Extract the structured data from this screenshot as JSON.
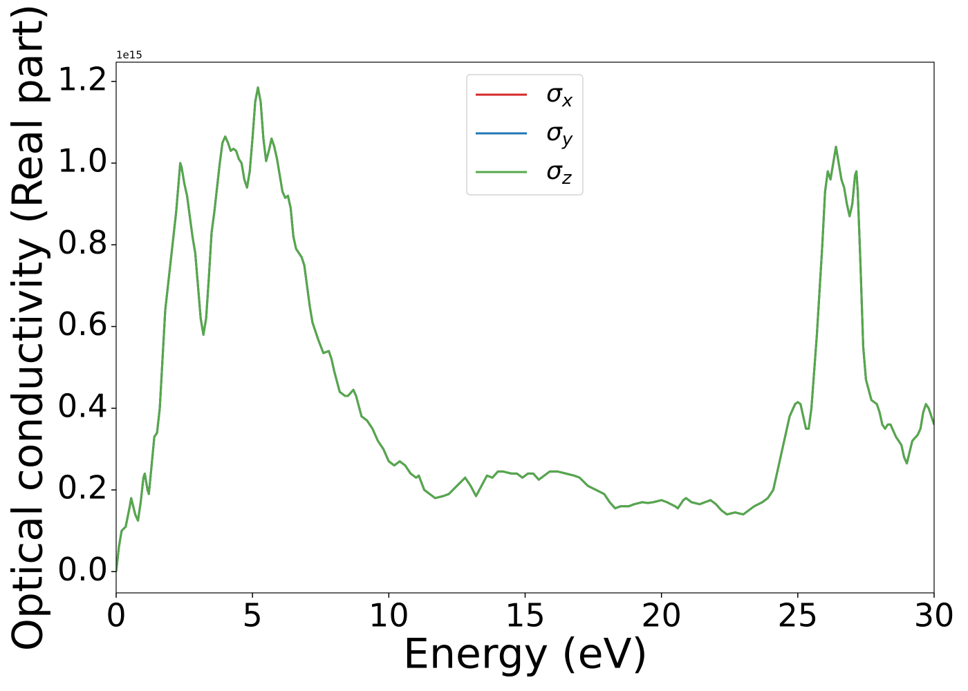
{
  "chart_data": {
    "type": "line",
    "x_label": "Energy (eV)",
    "y_label": "Optical conductivity (Real part)",
    "y_offset_label": "1e15",
    "x": [
      0,
      0.1,
      0.2,
      0.35,
      0.5,
      0.55,
      0.7,
      0.8,
      0.9,
      1.0,
      1.05,
      1.15,
      1.2,
      1.3,
      1.4,
      1.5,
      1.6,
      1.7,
      1.8,
      1.9,
      2.0,
      2.1,
      2.2,
      2.3,
      2.35,
      2.4,
      2.5,
      2.6,
      2.7,
      2.8,
      2.9,
      3.0,
      3.1,
      3.2,
      3.3,
      3.4,
      3.5,
      3.6,
      3.7,
      3.8,
      3.9,
      4.0,
      4.1,
      4.2,
      4.3,
      4.4,
      4.5,
      4.6,
      4.7,
      4.8,
      4.9,
      5.0,
      5.1,
      5.2,
      5.3,
      5.4,
      5.5,
      5.6,
      5.7,
      5.8,
      5.9,
      6.0,
      6.1,
      6.2,
      6.3,
      6.4,
      6.5,
      6.6,
      6.8,
      6.9,
      7.0,
      7.1,
      7.2,
      7.4,
      7.6,
      7.8,
      7.9,
      8.0,
      8.2,
      8.4,
      8.5,
      8.7,
      8.8,
      9.0,
      9.2,
      9.4,
      9.6,
      9.8,
      10.0,
      10.2,
      10.4,
      10.6,
      10.8,
      11.0,
      11.1,
      11.3,
      11.5,
      11.7,
      12.0,
      12.2,
      12.5,
      12.8,
      13.0,
      13.2,
      13.4,
      13.6,
      13.8,
      14.0,
      14.2,
      14.5,
      14.7,
      14.9,
      15.1,
      15.3,
      15.5,
      15.7,
      15.9,
      16.2,
      16.5,
      16.8,
      17.0,
      17.3,
      17.6,
      17.9,
      18.1,
      18.3,
      18.5,
      18.8,
      19.0,
      19.3,
      19.5,
      19.7,
      20.0,
      20.2,
      20.5,
      20.6,
      20.8,
      20.9,
      21.1,
      21.4,
      21.6,
      21.8,
      22.0,
      22.2,
      22.4,
      22.7,
      23.0,
      23.2,
      23.4,
      23.7,
      23.9,
      24.1,
      24.3,
      24.5,
      24.7,
      24.9,
      25.0,
      25.1,
      25.2,
      25.3,
      25.4,
      25.5,
      25.7,
      25.9,
      26.0,
      26.1,
      26.2,
      26.3,
      26.4,
      26.5,
      26.6,
      26.7,
      26.8,
      26.9,
      27.0,
      27.1,
      27.15,
      27.2,
      27.3,
      27.4,
      27.5,
      27.7,
      27.9,
      28.0,
      28.1,
      28.2,
      28.3,
      28.4,
      28.6,
      28.8,
      28.9,
      29.0,
      29.2,
      29.4,
      29.5,
      29.6,
      29.7,
      29.8,
      30.0
    ],
    "series": [
      {
        "name": "σx",
        "color": "#d62728",
        "values": [
          0.0,
          0.06,
          0.1,
          0.11,
          0.16,
          0.18,
          0.14,
          0.125,
          0.17,
          0.23,
          0.24,
          0.2,
          0.19,
          0.26,
          0.33,
          0.34,
          0.4,
          0.52,
          0.64,
          0.7,
          0.76,
          0.82,
          0.88,
          0.96,
          1.0,
          0.99,
          0.95,
          0.92,
          0.87,
          0.82,
          0.78,
          0.7,
          0.62,
          0.58,
          0.62,
          0.72,
          0.83,
          0.88,
          0.94,
          1.0,
          1.05,
          1.065,
          1.05,
          1.03,
          1.035,
          1.03,
          1.01,
          1.0,
          0.96,
          0.94,
          0.98,
          1.06,
          1.15,
          1.185,
          1.15,
          1.06,
          1.005,
          1.03,
          1.06,
          1.04,
          1.01,
          0.97,
          0.93,
          0.915,
          0.92,
          0.89,
          0.82,
          0.79,
          0.77,
          0.75,
          0.7,
          0.65,
          0.61,
          0.57,
          0.535,
          0.54,
          0.52,
          0.49,
          0.44,
          0.43,
          0.43,
          0.445,
          0.43,
          0.38,
          0.37,
          0.35,
          0.32,
          0.3,
          0.27,
          0.26,
          0.27,
          0.26,
          0.24,
          0.23,
          0.235,
          0.2,
          0.19,
          0.18,
          0.185,
          0.19,
          0.21,
          0.23,
          0.21,
          0.185,
          0.21,
          0.235,
          0.23,
          0.245,
          0.245,
          0.24,
          0.24,
          0.23,
          0.24,
          0.24,
          0.225,
          0.235,
          0.245,
          0.245,
          0.24,
          0.235,
          0.23,
          0.21,
          0.2,
          0.19,
          0.17,
          0.155,
          0.16,
          0.16,
          0.165,
          0.17,
          0.168,
          0.17,
          0.175,
          0.17,
          0.16,
          0.155,
          0.175,
          0.18,
          0.17,
          0.165,
          0.17,
          0.175,
          0.165,
          0.15,
          0.14,
          0.145,
          0.14,
          0.15,
          0.16,
          0.17,
          0.18,
          0.2,
          0.26,
          0.32,
          0.38,
          0.41,
          0.415,
          0.41,
          0.38,
          0.35,
          0.35,
          0.4,
          0.58,
          0.8,
          0.93,
          0.98,
          0.96,
          1.0,
          1.04,
          1.0,
          0.96,
          0.94,
          0.9,
          0.87,
          0.9,
          0.97,
          0.98,
          0.93,
          0.75,
          0.55,
          0.47,
          0.42,
          0.41,
          0.39,
          0.36,
          0.35,
          0.36,
          0.36,
          0.33,
          0.31,
          0.28,
          0.265,
          0.32,
          0.335,
          0.35,
          0.39,
          0.41,
          0.4,
          0.36
        ]
      },
      {
        "name": "σy",
        "color": "#1f77b4",
        "values": [
          0.0,
          0.06,
          0.1,
          0.11,
          0.16,
          0.18,
          0.14,
          0.125,
          0.17,
          0.23,
          0.24,
          0.2,
          0.19,
          0.26,
          0.33,
          0.34,
          0.4,
          0.52,
          0.64,
          0.7,
          0.76,
          0.82,
          0.88,
          0.96,
          1.0,
          0.99,
          0.95,
          0.92,
          0.87,
          0.82,
          0.78,
          0.7,
          0.62,
          0.58,
          0.62,
          0.72,
          0.83,
          0.88,
          0.94,
          1.0,
          1.05,
          1.065,
          1.05,
          1.03,
          1.035,
          1.03,
          1.01,
          1.0,
          0.96,
          0.94,
          0.98,
          1.06,
          1.15,
          1.185,
          1.15,
          1.06,
          1.005,
          1.03,
          1.06,
          1.04,
          1.01,
          0.97,
          0.93,
          0.915,
          0.92,
          0.89,
          0.82,
          0.79,
          0.77,
          0.75,
          0.7,
          0.65,
          0.61,
          0.57,
          0.535,
          0.54,
          0.52,
          0.49,
          0.44,
          0.43,
          0.43,
          0.445,
          0.43,
          0.38,
          0.37,
          0.35,
          0.32,
          0.3,
          0.27,
          0.26,
          0.27,
          0.26,
          0.24,
          0.23,
          0.235,
          0.2,
          0.19,
          0.18,
          0.185,
          0.19,
          0.21,
          0.23,
          0.21,
          0.185,
          0.21,
          0.235,
          0.23,
          0.245,
          0.245,
          0.24,
          0.24,
          0.23,
          0.24,
          0.24,
          0.225,
          0.235,
          0.245,
          0.245,
          0.24,
          0.235,
          0.23,
          0.21,
          0.2,
          0.19,
          0.17,
          0.155,
          0.16,
          0.16,
          0.165,
          0.17,
          0.168,
          0.17,
          0.175,
          0.17,
          0.16,
          0.155,
          0.175,
          0.18,
          0.17,
          0.165,
          0.17,
          0.175,
          0.165,
          0.15,
          0.14,
          0.145,
          0.14,
          0.15,
          0.16,
          0.17,
          0.18,
          0.2,
          0.26,
          0.32,
          0.38,
          0.41,
          0.415,
          0.41,
          0.38,
          0.35,
          0.35,
          0.4,
          0.58,
          0.8,
          0.93,
          0.98,
          0.96,
          1.0,
          1.04,
          1.0,
          0.96,
          0.94,
          0.9,
          0.87,
          0.9,
          0.97,
          0.98,
          0.93,
          0.75,
          0.55,
          0.47,
          0.42,
          0.41,
          0.39,
          0.36,
          0.35,
          0.36,
          0.36,
          0.33,
          0.31,
          0.28,
          0.265,
          0.32,
          0.335,
          0.35,
          0.39,
          0.41,
          0.4,
          0.36
        ]
      },
      {
        "name": "σz",
        "color": "#55a84a",
        "values": [
          0.0,
          0.06,
          0.1,
          0.11,
          0.16,
          0.18,
          0.14,
          0.125,
          0.17,
          0.23,
          0.24,
          0.2,
          0.19,
          0.26,
          0.33,
          0.34,
          0.4,
          0.52,
          0.64,
          0.7,
          0.76,
          0.82,
          0.88,
          0.96,
          1.0,
          0.99,
          0.95,
          0.92,
          0.87,
          0.82,
          0.78,
          0.7,
          0.62,
          0.58,
          0.62,
          0.72,
          0.83,
          0.88,
          0.94,
          1.0,
          1.05,
          1.065,
          1.05,
          1.03,
          1.035,
          1.03,
          1.01,
          1.0,
          0.96,
          0.94,
          0.98,
          1.06,
          1.15,
          1.185,
          1.15,
          1.06,
          1.005,
          1.03,
          1.06,
          1.04,
          1.01,
          0.97,
          0.93,
          0.915,
          0.92,
          0.89,
          0.82,
          0.79,
          0.77,
          0.75,
          0.7,
          0.65,
          0.61,
          0.57,
          0.535,
          0.54,
          0.52,
          0.49,
          0.44,
          0.43,
          0.43,
          0.445,
          0.43,
          0.38,
          0.37,
          0.35,
          0.32,
          0.3,
          0.27,
          0.26,
          0.27,
          0.26,
          0.24,
          0.23,
          0.235,
          0.2,
          0.19,
          0.18,
          0.185,
          0.19,
          0.21,
          0.23,
          0.21,
          0.185,
          0.21,
          0.235,
          0.23,
          0.245,
          0.245,
          0.24,
          0.24,
          0.23,
          0.24,
          0.24,
          0.225,
          0.235,
          0.245,
          0.245,
          0.24,
          0.235,
          0.23,
          0.21,
          0.2,
          0.19,
          0.17,
          0.155,
          0.16,
          0.16,
          0.165,
          0.17,
          0.168,
          0.17,
          0.175,
          0.17,
          0.16,
          0.155,
          0.175,
          0.18,
          0.17,
          0.165,
          0.17,
          0.175,
          0.165,
          0.15,
          0.14,
          0.145,
          0.14,
          0.15,
          0.16,
          0.17,
          0.18,
          0.2,
          0.26,
          0.32,
          0.38,
          0.41,
          0.415,
          0.41,
          0.38,
          0.35,
          0.35,
          0.4,
          0.58,
          0.8,
          0.93,
          0.98,
          0.96,
          1.0,
          1.04,
          1.0,
          0.96,
          0.94,
          0.9,
          0.87,
          0.9,
          0.97,
          0.98,
          0.93,
          0.75,
          0.55,
          0.47,
          0.42,
          0.41,
          0.39,
          0.36,
          0.35,
          0.36,
          0.36,
          0.33,
          0.31,
          0.28,
          0.265,
          0.32,
          0.335,
          0.35,
          0.39,
          0.41,
          0.4,
          0.36
        ]
      }
    ],
    "xlim": [
      0,
      30
    ],
    "xticks": [
      0,
      5,
      10,
      15,
      20,
      25,
      30
    ],
    "ylim": [
      -0.052,
      1.247
    ],
    "yticks": [
      {
        "value": 0,
        "label": "0.0"
      },
      {
        "value": 0.2,
        "label": "0.2"
      },
      {
        "value": 0.4,
        "label": "0.4"
      },
      {
        "value": 0.6,
        "label": "0.6"
      },
      {
        "value": 0.8,
        "label": "0.8"
      },
      {
        "value": 1.0,
        "label": "1.0"
      },
      {
        "value": 1.2,
        "label": "1.2"
      }
    ],
    "grid": false,
    "legend": "upper center"
  }
}
